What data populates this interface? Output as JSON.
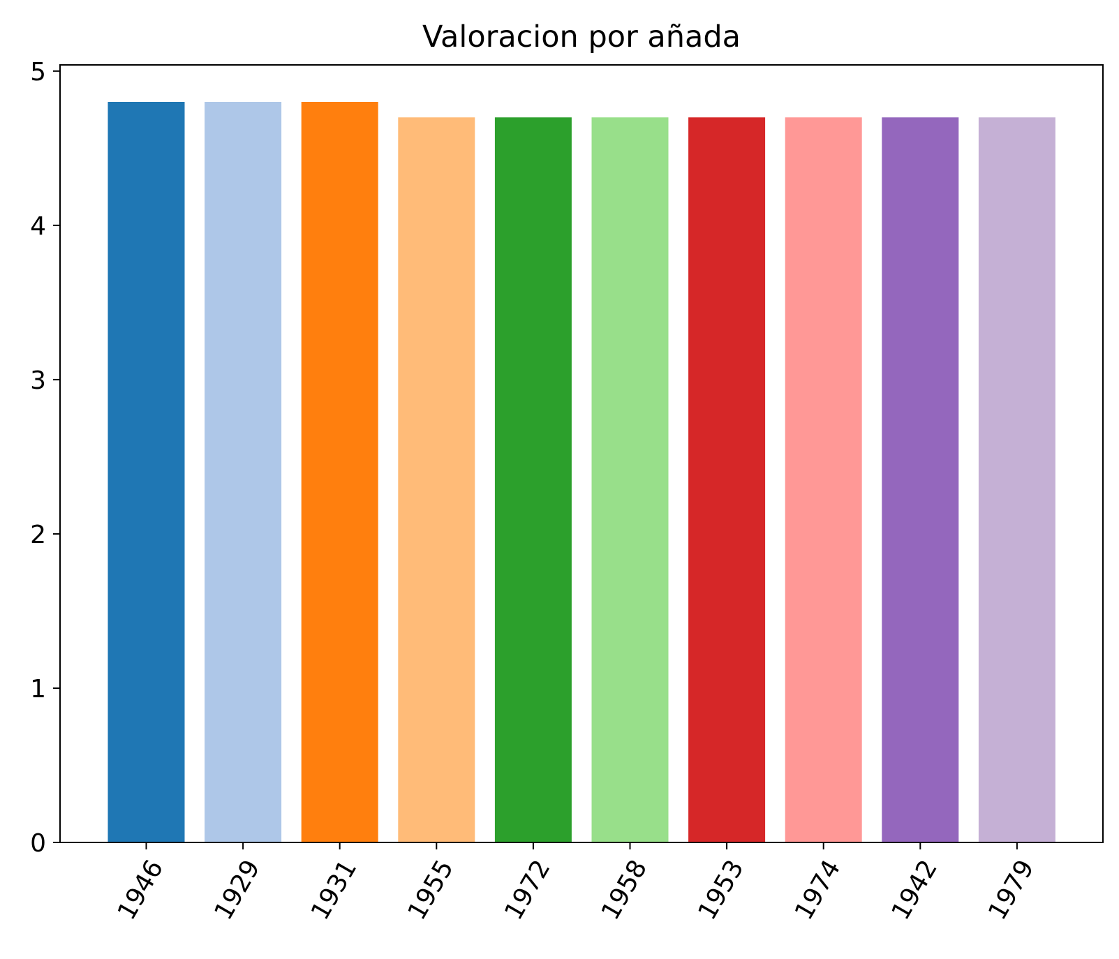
{
  "chart_data": {
    "type": "bar",
    "title": "Valoracion por añada",
    "xlabel": "",
    "ylabel": "",
    "categories": [
      "1946",
      "1929",
      "1931",
      "1955",
      "1972",
      "1958",
      "1953",
      "1974",
      "1942",
      "1979"
    ],
    "values": [
      4.8,
      4.8,
      4.8,
      4.7,
      4.7,
      4.7,
      4.7,
      4.7,
      4.7,
      4.7
    ],
    "colors": [
      "#1f77b4",
      "#aec7e8",
      "#ff7f0e",
      "#ffbb78",
      "#2ca02c",
      "#98df8a",
      "#d62728",
      "#ff9896",
      "#9467bd",
      "#c5b0d5"
    ],
    "ylim": [
      0,
      5.04
    ],
    "yticks": [
      "0",
      "1",
      "2",
      "3",
      "4",
      "5"
    ],
    "grid": false,
    "legend": false
  }
}
